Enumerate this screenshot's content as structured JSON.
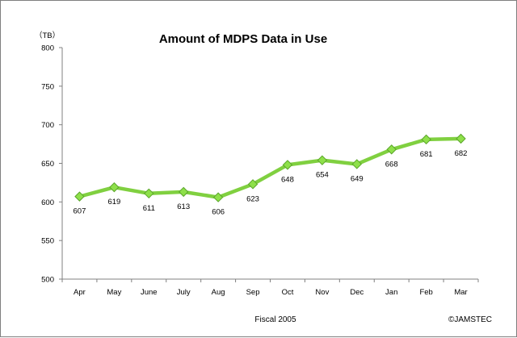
{
  "chart_data": {
    "type": "line",
    "title": "Amount of MDPS Data in Use",
    "unit_label": "（TB）",
    "xlabel": "Fiscal 2005",
    "ylabel": "",
    "credit": "©JAMSTEC",
    "categories": [
      "Apr",
      "May",
      "June",
      "July",
      "Aug",
      "Sep",
      "Oct",
      "Nov",
      "Dec",
      "Jan",
      "Feb",
      "Mar"
    ],
    "series": [
      {
        "values": [
          607,
          619,
          611,
          613,
          606,
          623,
          648,
          654,
          649,
          668,
          681,
          682
        ]
      }
    ],
    "ylim": [
      500,
      800
    ],
    "yticks": [
      500,
      550,
      600,
      650,
      700,
      750,
      800
    ],
    "grid": false,
    "legend": "none",
    "data_labels": true,
    "colors": {
      "line": "#80d040",
      "marker_fill": "#8ee04a",
      "marker_stroke": "#5aa52a",
      "axis": "#808080"
    }
  }
}
